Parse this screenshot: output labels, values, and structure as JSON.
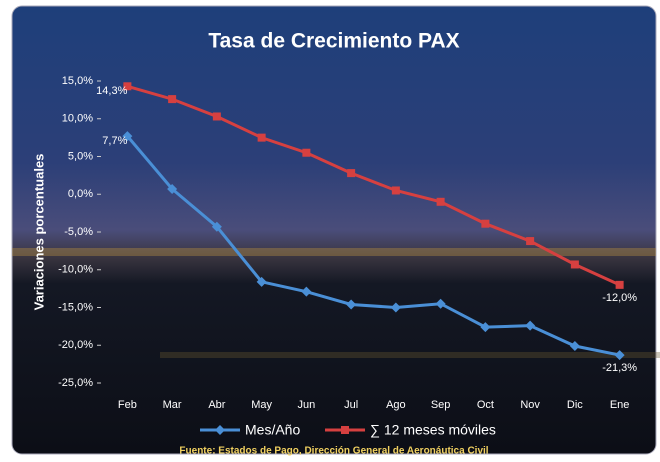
{
  "chart_data": {
    "type": "line",
    "title": "Tasa de Crecimiento PAX",
    "y_label": "Variaciones  porcentuales",
    "source": "Fuente: Estados de Pago, Dirección General de Aeronáutica Civil",
    "categories": [
      "Feb",
      "Mar",
      "Abr",
      "May",
      "Jun",
      "Jul",
      "Ago",
      "Sep",
      "Oct",
      "Nov",
      "Dic",
      "Ene"
    ],
    "series": [
      {
        "name": "Mes/Año",
        "color": "#4a8fd6",
        "marker": "diamond",
        "values": [
          7.7,
          0.7,
          -4.3,
          -11.6,
          -12.9,
          -14.6,
          -15.0,
          -14.5,
          -17.6,
          -17.4,
          -20.1,
          -21.3
        ],
        "value_labels": [
          "7,7%",
          null,
          null,
          null,
          null,
          null,
          null,
          null,
          null,
          null,
          null,
          "-21,3%"
        ]
      },
      {
        "name": "∑ 12 meses móviles",
        "color": "#d64040",
        "marker": "square",
        "values": [
          14.3,
          12.6,
          10.3,
          7.5,
          5.5,
          2.8,
          0.5,
          -1.0,
          -3.9,
          -6.2,
          -9.3,
          -12.0
        ],
        "value_labels": [
          "14,3%",
          null,
          null,
          null,
          null,
          null,
          null,
          null,
          null,
          null,
          null,
          "-12,0%"
        ]
      }
    ],
    "ylim": [
      -25,
      15
    ],
    "yticks": [
      {
        "value": -25,
        "label": "-25,0%"
      },
      {
        "value": -20,
        "label": "-20,0%"
      },
      {
        "value": -15,
        "label": "-15,0%"
      },
      {
        "value": -10,
        "label": "-10,0%"
      },
      {
        "value": -5,
        "label": "-5,0%"
      },
      {
        "value": 0,
        "label": "0,0%"
      },
      {
        "value": 5,
        "label": "5,0%"
      },
      {
        "value": 10,
        "label": "10,0%"
      },
      {
        "value": 15,
        "label": "15,0%"
      }
    ],
    "grid": false
  }
}
